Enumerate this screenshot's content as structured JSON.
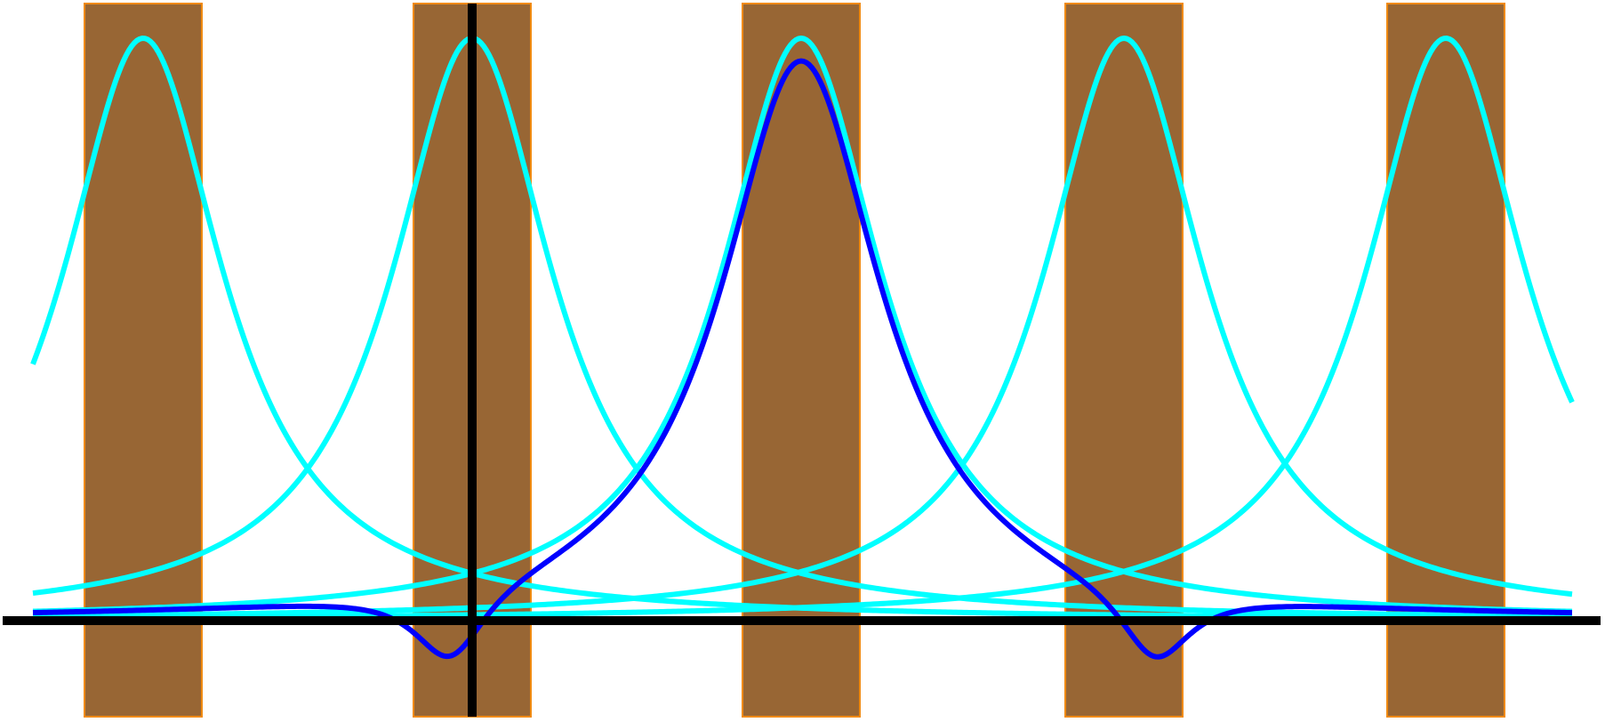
{
  "diagram": {
    "colors": {
      "background": "#ffffff",
      "bar_fill": "#986634",
      "bar_outline": "#f08a10",
      "peak_curves": "#00ffff",
      "combined_curve": "#0000ff",
      "axes": "#000000"
    },
    "bars": [
      {
        "id": "bar-1"
      },
      {
        "id": "bar-2"
      },
      {
        "id": "bar-3"
      },
      {
        "id": "bar-4"
      },
      {
        "id": "bar-5"
      }
    ],
    "peak_curves": [
      {
        "id": "peak-curve-1"
      },
      {
        "id": "peak-curve-2"
      },
      {
        "id": "peak-curve-3"
      },
      {
        "id": "peak-curve-4"
      },
      {
        "id": "peak-curve-5"
      }
    ],
    "combined_curve": {
      "id": "combined-curve"
    }
  }
}
